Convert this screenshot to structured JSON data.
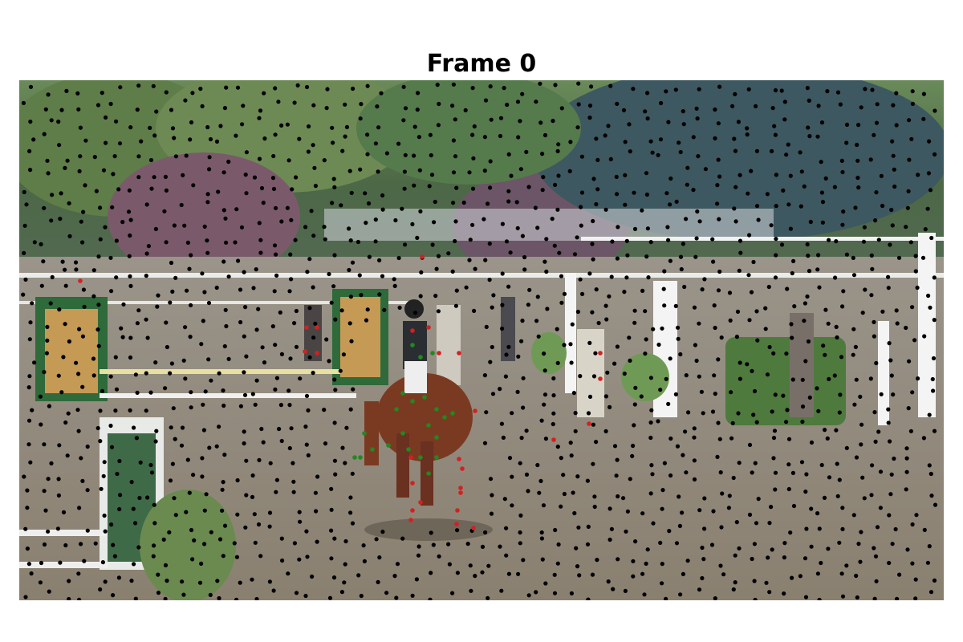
{
  "title": "Frame 0",
  "colors": {
    "background": "#ffffff",
    "point_default": "#000000",
    "point_foreground": "#1f8a1f",
    "point_outlier": "#d42020"
  },
  "scene_description_icon": "horse-and-rider-photo"
}
